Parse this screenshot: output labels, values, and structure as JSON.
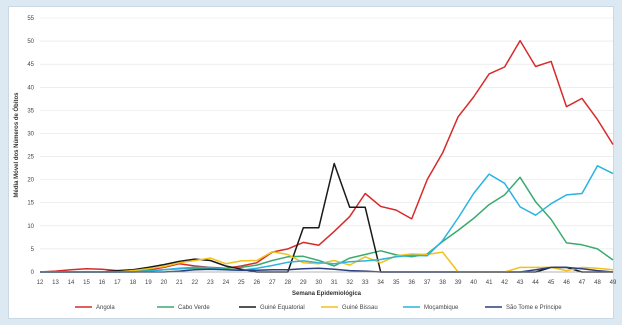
{
  "chart_data": {
    "type": "line",
    "title": "",
    "xlabel": "Semana Epidemiológica",
    "ylabel": "Média Móvel dos Números de Óbitos",
    "ylim": [
      0,
      55
    ],
    "yticks": [
      "0",
      "5",
      "10",
      "15",
      "20",
      "25",
      "30",
      "35",
      "40",
      "45",
      "50",
      "55"
    ],
    "categories": [
      "12",
      "13",
      "14",
      "15",
      "16",
      "17",
      "18",
      "19",
      "20",
      "21",
      "22",
      "23",
      "24",
      "25",
      "26",
      "27",
      "28",
      "29",
      "30",
      "31",
      "32",
      "33",
      "34",
      "35",
      "36",
      "37",
      "38",
      "39",
      "40",
      "41",
      "42",
      "43",
      "44",
      "45",
      "46",
      "47",
      "48",
      "49"
    ],
    "grid": "horizontal",
    "legend_position": "bottom",
    "series": [
      {
        "name": "Angola",
        "color": "#d62b2b",
        "values": [
          0,
          0.2,
          0.5,
          0.7,
          0.6,
          0.3,
          0.2,
          0.5,
          1.0,
          1.8,
          1.3,
          1.0,
          0.8,
          1.3,
          2.0,
          4.3,
          5.0,
          6.4,
          5.8,
          8.8,
          12.0,
          17.0,
          14.2,
          13.4,
          11.5,
          20.0,
          25.8,
          33.6,
          37.9,
          42.9,
          44.4,
          50.1,
          44.5,
          45.6,
          35.8,
          37.6,
          33.0,
          27.6
        ]
      },
      {
        "name": "Cabo Verde",
        "color": "#3aab6d",
        "values": [
          0,
          0,
          0,
          0,
          0,
          0,
          0.1,
          0.3,
          0.5,
          0.7,
          0.8,
          0.8,
          0.8,
          1.0,
          1.5,
          2.5,
          3.3,
          3.4,
          2.5,
          1.3,
          3.0,
          3.8,
          4.6,
          3.7,
          3.3,
          3.9,
          6.6,
          9.0,
          11.6,
          14.6,
          16.7,
          20.5,
          15.2,
          11.4,
          6.3,
          5.9,
          5.0,
          2.6
        ]
      },
      {
        "name": "Guiné Equatorial",
        "color": "#1a1a1a",
        "values": [
          0,
          0,
          0,
          0,
          0,
          0.3,
          0.5,
          1.0,
          1.6,
          2.3,
          2.8,
          2.5,
          1.3,
          0.6,
          0,
          0,
          0,
          9.6,
          9.6,
          23.5,
          14.0,
          14.0,
          0,
          0,
          0,
          0,
          0,
          0,
          0,
          0,
          0,
          0,
          0,
          1.0,
          1.0,
          0,
          0,
          0
        ]
      },
      {
        "name": "Guiné Bissau",
        "color": "#f2c21a",
        "values": [
          0,
          0,
          0,
          0,
          0,
          0,
          0.3,
          0.7,
          1.2,
          2.0,
          2.5,
          3.0,
          1.8,
          2.4,
          2.5,
          4.4,
          3.8,
          2.0,
          1.8,
          2.5,
          1.5,
          3.3,
          2.0,
          3.5,
          3.9,
          3.8,
          4.3,
          0,
          0,
          0,
          0,
          1.0,
          1.0,
          1.0,
          0.3,
          1.0,
          0.8,
          0.5
        ]
      },
      {
        "name": "Moçambique",
        "color": "#2ab3e3",
        "values": [
          0,
          0,
          0,
          0,
          0,
          0,
          0,
          0.2,
          0.5,
          0.8,
          1.0,
          1.0,
          0.5,
          0.4,
          0.8,
          1.4,
          2.1,
          2.4,
          2.0,
          1.8,
          2.2,
          2.4,
          2.7,
          3.3,
          3.6,
          3.5,
          6.8,
          11.7,
          17.0,
          21.2,
          19.2,
          14.1,
          12.3,
          14.8,
          16.7,
          17.0,
          23.0,
          21.3
        ]
      },
      {
        "name": "São Tome e Príncipe",
        "color": "#2e3f7e",
        "values": [
          0,
          0,
          0,
          0,
          0,
          0,
          0,
          0,
          0,
          0.2,
          0.5,
          0.6,
          0.5,
          0.4,
          0.4,
          0.5,
          0.5,
          0.7,
          0.8,
          0.6,
          0.3,
          0.2,
          0,
          0,
          0,
          0,
          0,
          0,
          0,
          0,
          0,
          0,
          0.5,
          1.0,
          1.0,
          0.7,
          0.3,
          0
        ]
      }
    ]
  }
}
